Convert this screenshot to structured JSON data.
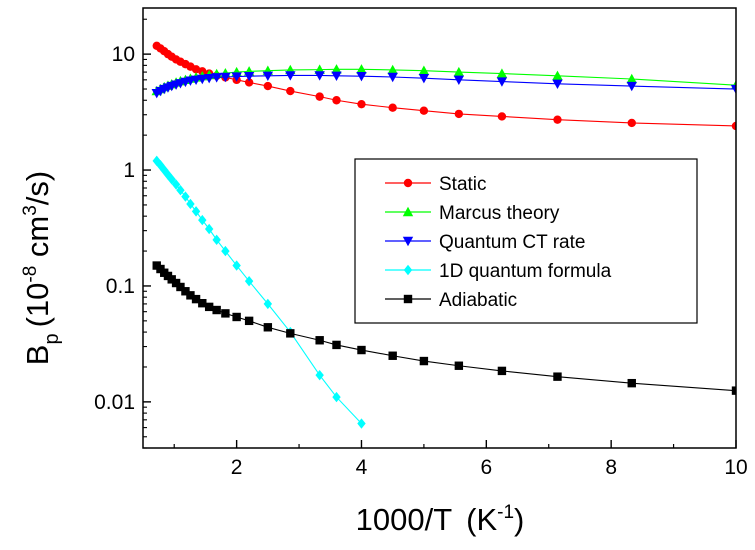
{
  "chart_data": {
    "type": "scatter",
    "x_axis": {
      "title_main": "1000/T",
      "title_unit_open": "(K",
      "title_unit_sup": "-1",
      "title_unit_close": ")",
      "range": [
        0.5,
        10
      ],
      "ticks": [
        2,
        4,
        6,
        8,
        10
      ],
      "tick_labels": [
        "2",
        "4",
        "6",
        "8",
        "10"
      ]
    },
    "y_axis": {
      "title_B": "B",
      "title_sub": "p",
      "title_open": "(10",
      "title_exp": "-8",
      "title_cm": " cm",
      "title_cm_sup": "3",
      "title_close": "/s)",
      "scale": "log",
      "range": [
        0.004,
        25
      ],
      "ticks": [
        0.01,
        0.1,
        1,
        10
      ],
      "tick_labels": [
        "0.01",
        "0.1",
        "1",
        "10"
      ]
    },
    "grid": false,
    "legend_position": "center-right",
    "series": [
      {
        "name": "Static",
        "color": "#ff0000",
        "marker": "circle",
        "x": [
          0.72,
          0.78,
          0.84,
          0.9,
          0.96,
          1.03,
          1.1,
          1.18,
          1.26,
          1.35,
          1.45,
          1.56,
          1.68,
          1.82,
          2.0,
          2.2,
          2.5,
          2.86,
          3.33,
          3.6,
          4.0,
          4.5,
          5.0,
          5.56,
          6.25,
          7.14,
          8.33,
          10.0
        ],
        "y": [
          11.8,
          11.2,
          10.6,
          10.0,
          9.5,
          9.0,
          8.6,
          8.2,
          7.8,
          7.4,
          7.1,
          6.8,
          6.5,
          6.3,
          6.0,
          5.7,
          5.3,
          4.8,
          4.3,
          4.0,
          3.7,
          3.45,
          3.25,
          3.05,
          2.9,
          2.72,
          2.55,
          2.4
        ]
      },
      {
        "name": "Marcus theory",
        "color": "#00ff00",
        "marker": "triangle-up",
        "x": [
          0.72,
          0.78,
          0.84,
          0.9,
          0.96,
          1.03,
          1.1,
          1.18,
          1.26,
          1.35,
          1.45,
          1.56,
          1.68,
          1.82,
          2.0,
          2.2,
          2.5,
          2.86,
          3.33,
          3.6,
          4.0,
          4.5,
          5.0,
          5.56,
          6.25,
          7.14,
          8.33,
          10.0
        ],
        "y": [
          4.8,
          5.0,
          5.2,
          5.35,
          5.5,
          5.7,
          5.85,
          6.0,
          6.15,
          6.3,
          6.45,
          6.6,
          6.75,
          6.85,
          7.0,
          7.1,
          7.2,
          7.3,
          7.35,
          7.4,
          7.4,
          7.3,
          7.2,
          7.0,
          6.8,
          6.5,
          6.1,
          5.4
        ]
      },
      {
        "name": "Quantum CT rate",
        "color": "#0000ff",
        "marker": "triangle-down",
        "x": [
          0.72,
          0.78,
          0.84,
          0.9,
          0.96,
          1.03,
          1.1,
          1.18,
          1.26,
          1.35,
          1.45,
          1.56,
          1.68,
          1.82,
          2.0,
          2.2,
          2.5,
          2.86,
          3.33,
          3.6,
          4.0,
          4.5,
          5.0,
          5.56,
          6.25,
          7.14,
          8.33,
          10.0
        ],
        "y": [
          4.6,
          4.8,
          5.0,
          5.15,
          5.3,
          5.45,
          5.6,
          5.75,
          5.9,
          6.0,
          6.1,
          6.2,
          6.3,
          6.35,
          6.4,
          6.45,
          6.5,
          6.55,
          6.55,
          6.5,
          6.45,
          6.35,
          6.2,
          6.0,
          5.8,
          5.55,
          5.3,
          5.0
        ]
      },
      {
        "name": "1D quantum formula",
        "color": "#00ffff",
        "marker": "diamond",
        "x": [
          0.72,
          0.78,
          0.84,
          0.9,
          0.96,
          1.03,
          1.1,
          1.18,
          1.26,
          1.35,
          1.45,
          1.56,
          1.68,
          1.82,
          2.0,
          2.2,
          2.5,
          2.86,
          3.33,
          3.6,
          4.0
        ],
        "y": [
          1.2,
          1.1,
          1.0,
          0.91,
          0.83,
          0.75,
          0.67,
          0.59,
          0.51,
          0.44,
          0.37,
          0.31,
          0.25,
          0.2,
          0.15,
          0.11,
          0.07,
          0.04,
          0.017,
          0.011,
          0.0065
        ]
      },
      {
        "name": "Adiabatic",
        "color": "#000000",
        "marker": "square",
        "x": [
          0.72,
          0.78,
          0.84,
          0.9,
          0.96,
          1.03,
          1.1,
          1.18,
          1.26,
          1.35,
          1.45,
          1.56,
          1.68,
          1.82,
          2.0,
          2.2,
          2.5,
          2.86,
          3.33,
          3.6,
          4.0,
          4.5,
          5.0,
          5.56,
          6.25,
          7.14,
          8.33,
          10.0
        ],
        "y": [
          0.15,
          0.14,
          0.13,
          0.122,
          0.114,
          0.106,
          0.098,
          0.09,
          0.083,
          0.077,
          0.071,
          0.066,
          0.062,
          0.058,
          0.054,
          0.05,
          0.044,
          0.039,
          0.034,
          0.031,
          0.028,
          0.025,
          0.0225,
          0.0205,
          0.0185,
          0.0165,
          0.0145,
          0.0125
        ]
      }
    ]
  }
}
